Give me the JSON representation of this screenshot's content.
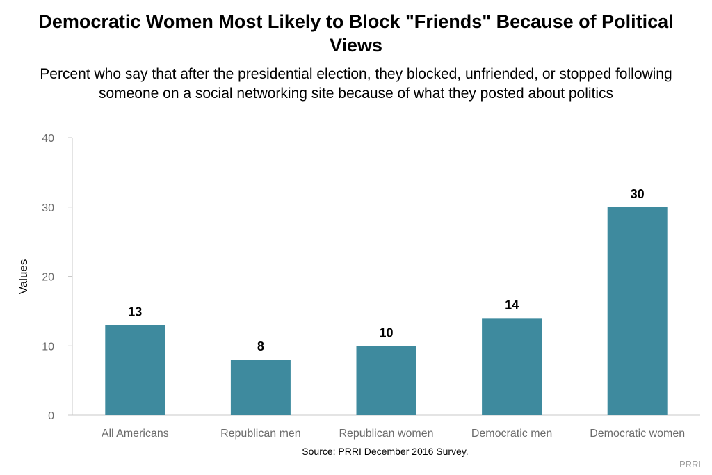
{
  "chart_data": {
    "type": "bar",
    "title": "Democratic Women Most Likely to Block \"Friends\" Because of Political Views",
    "subtitle": "Percent who say that after the presidential election, they blocked, unfriended, or stopped following someone on a social networking site because of what they posted about politics",
    "categories": [
      "All Americans",
      "Republican men",
      "Republican women",
      "Democratic men",
      "Democratic women"
    ],
    "values": [
      13,
      8,
      10,
      14,
      30
    ],
    "data_labels": [
      "13",
      "8",
      "10",
      "14",
      "30"
    ],
    "xlabel": "",
    "ylabel": "Values",
    "ylim": [
      0,
      40
    ],
    "yticks": [
      0,
      10,
      20,
      30,
      40
    ],
    "grid": false,
    "bar_color": "#3e8a9e",
    "caption": "Source: PRRI December 2016 Survey.",
    "watermark": "PRRI"
  }
}
